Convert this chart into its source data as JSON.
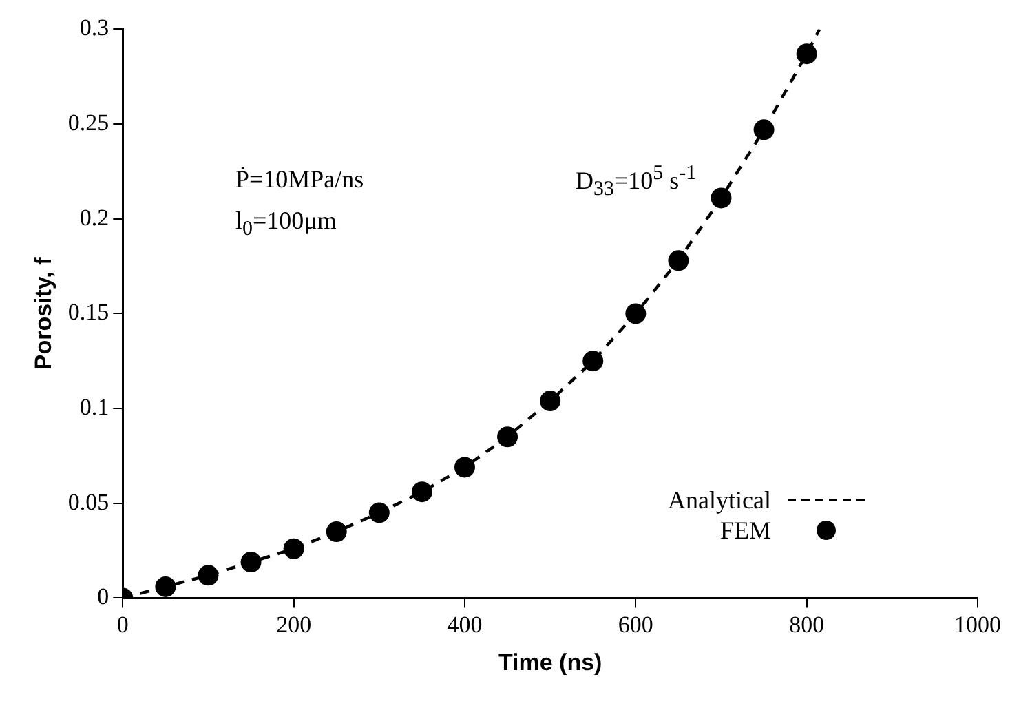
{
  "chart_data": {
    "type": "line",
    "xlabel": "Time (ns)",
    "ylabel": "Porosity, f",
    "xlim": [
      0,
      1000
    ],
    "xticks": [
      0,
      200,
      400,
      600,
      800,
      1000
    ],
    "ylim": [
      0,
      0.3
    ],
    "yticks": [
      0,
      0.05,
      0.1,
      0.15,
      0.2,
      0.25,
      0.3
    ],
    "grid": false,
    "legend": "bottom right",
    "annotations": [
      "Ṗ=10MPa/ns",
      "l$_{0}$=100μm",
      "D$_{33}$=10$^{5}$ s$^{-1}$"
    ],
    "series": [
      {
        "name": "Analytical",
        "type": "line",
        "color": "#000000",
        "line_style": "dashed",
        "marker": "none",
        "x": [
          0,
          50,
          100,
          150,
          200,
          250,
          300,
          350,
          400,
          450,
          500,
          550,
          600,
          650,
          700,
          750,
          800,
          815
        ],
        "values": [
          0,
          0.006,
          0.012,
          0.019,
          0.026,
          0.035,
          0.045,
          0.056,
          0.069,
          0.085,
          0.104,
          0.125,
          0.15,
          0.178,
          0.211,
          0.247,
          0.287,
          0.3
        ]
      },
      {
        "name": "FEM",
        "type": "scatter",
        "color": "#000000",
        "marker": "circle",
        "x": [
          0,
          50,
          100,
          150,
          200,
          250,
          300,
          350,
          400,
          450,
          500,
          550,
          600,
          650,
          700,
          750,
          800
        ],
        "values": [
          0,
          0.006,
          0.012,
          0.019,
          0.026,
          0.035,
          0.045,
          0.056,
          0.069,
          0.085,
          0.104,
          0.125,
          0.15,
          0.178,
          0.211,
          0.247,
          0.287
        ]
      }
    ]
  }
}
